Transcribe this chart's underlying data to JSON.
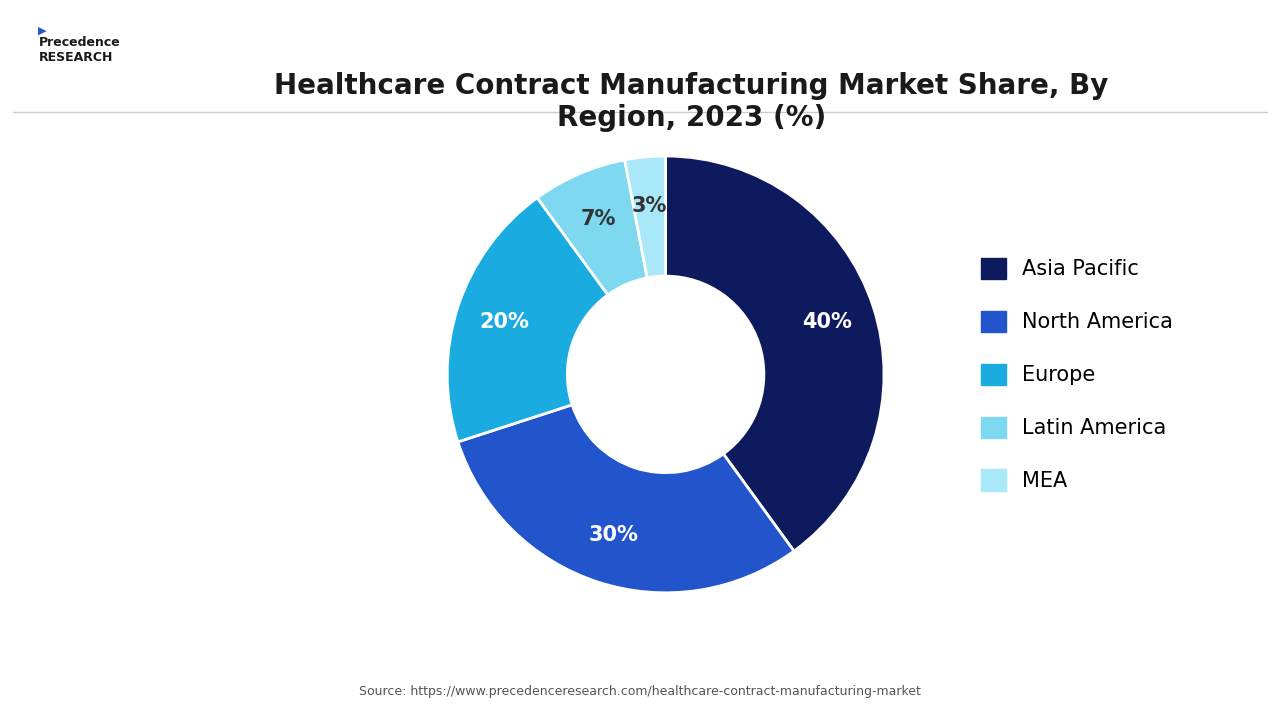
{
  "title": "Healthcare Contract Manufacturing Market Share, By\nRegion, 2023 (%)",
  "slices": [
    40,
    30,
    20,
    7,
    3
  ],
  "labels": [
    "Asia Pacific",
    "North America",
    "Europe",
    "Latin America",
    "MEA"
  ],
  "colors": [
    "#0d1b5e",
    "#2255cc",
    "#1aace0",
    "#7dd8f0",
    "#a8e8f8"
  ],
  "pct_labels": [
    "40%",
    "30%",
    "20%",
    "7%",
    "3%"
  ],
  "legend_colors": [
    "#0d1b5e",
    "#2255cc",
    "#1aace0",
    "#7dd8f0",
    "#a8e8f8"
  ],
  "source_text": "Source: https://www.precedenceresearch.com/healthcare-contract-manufacturing-market",
  "background_color": "#ffffff",
  "title_fontsize": 20,
  "label_fontsize": 15,
  "legend_fontsize": 15
}
